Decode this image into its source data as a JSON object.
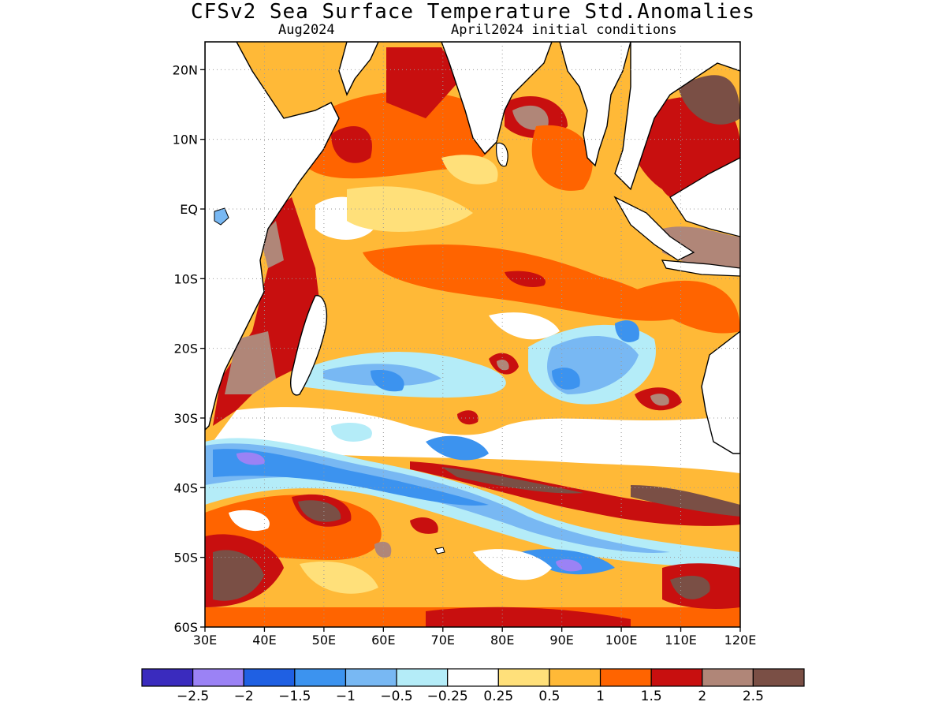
{
  "title": "CFSv2 Sea Surface Temperature Std.Anomalies",
  "valid_month": "Aug2024",
  "init_conditions": "April2024 initial conditions",
  "map": {
    "lon_range": [
      30,
      120
    ],
    "lat_range": [
      -60,
      24
    ],
    "lon_ticks": [
      "30E",
      "40E",
      "50E",
      "60E",
      "70E",
      "80E",
      "90E",
      "100E",
      "110E",
      "120E"
    ],
    "lat_ticks": [
      "20N",
      "10N",
      "EQ",
      "10S",
      "20S",
      "30S",
      "40S",
      "50S",
      "60S"
    ]
  },
  "colorbar": {
    "colors": [
      "#3a2bbe",
      "#9b82f5",
      "#1f60e3",
      "#3c93ef",
      "#78b8f3",
      "#b4ecf8",
      "#ffffff",
      "#ffe07a",
      "#ffb937",
      "#ff6400",
      "#c80f0f",
      "#b08678",
      "#7a4f45"
    ],
    "labels": [
      "−2.5",
      "−2",
      "−1.5",
      "−1",
      "−0.5",
      "−0.25",
      "0.25",
      "0.5",
      "1",
      "1.5",
      "2",
      "2.5"
    ]
  },
  "colors": {
    "land": "#ffffff",
    "coast": "#000000",
    "grid": "#9a9a9a"
  }
}
